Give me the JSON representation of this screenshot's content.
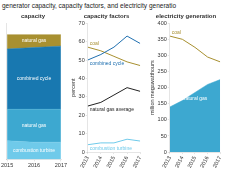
{
  "title": "generator capacity, capacity factors, and electricity generatio",
  "chart_data": [
    {
      "type": "area",
      "title": "capacity",
      "stacked": true,
      "grid": false,
      "tick_labels": "x",
      "x": [
        2015,
        2016,
        2017
      ],
      "xlim": [
        2014.99,
        2017.01
      ],
      "xticks": [
        2015,
        2016,
        2017
      ],
      "ylim": [
        0,
        95
      ],
      "series": [
        {
          "name": "combustion turbine",
          "color": "#6fcaea",
          "values": [
            13,
            12,
            12
          ]
        },
        {
          "name": "natural gas",
          "color": "#3da8d0",
          "values": [
            22,
            23,
            23
          ]
        },
        {
          "name": "combined cycle",
          "color": "#1878b0",
          "values": [
            42,
            43,
            44
          ]
        },
        {
          "name": "natural gas",
          "color": "#a89030",
          "values": [
            10,
            9,
            8
          ]
        }
      ]
    },
    {
      "type": "line",
      "title": "capacity factors",
      "ylabel": "percent",
      "grid": false,
      "x": [
        2013,
        2014,
        2015,
        2016,
        2017
      ],
      "xlim": [
        2013,
        2017
      ],
      "xticks": [
        2013,
        2014,
        2015,
        2016,
        2017
      ],
      "ylim": [
        0,
        70
      ],
      "yticks": [
        0,
        10,
        20,
        30,
        40,
        50,
        60,
        70
      ],
      "series": [
        {
          "name": "combined cycle",
          "color": "#2070b0",
          "values": [
            50,
            53,
            57,
            63,
            59
          ]
        },
        {
          "name": "coal",
          "color": "#a89030",
          "values": [
            57,
            55,
            52,
            49,
            47
          ]
        },
        {
          "name": "natural gas average",
          "color": "#222222",
          "values": [
            25,
            27,
            31,
            35,
            33
          ]
        },
        {
          "name": "combustion turbine",
          "color": "#6fcaea",
          "values": [
            4,
            5,
            5,
            7,
            6
          ]
        }
      ]
    },
    {
      "type": "line",
      "title": "electricity generation",
      "ylabel": "million megawatthours",
      "grid": false,
      "x": [
        2013,
        2014,
        2015,
        2016,
        2017
      ],
      "xlim": [
        2013,
        2017
      ],
      "xticks": [
        2013,
        2014,
        2015,
        2016,
        2017
      ],
      "ylim": [
        0,
        400
      ],
      "yticks": [
        0,
        50,
        100,
        150,
        200,
        250,
        300,
        350,
        400
      ],
      "series": [
        {
          "name": "natural gas",
          "type": "area",
          "color": "#3da8d0",
          "values": [
            140,
            160,
            185,
            210,
            225
          ]
        },
        {
          "name": "coal",
          "type": "line",
          "color": "#a89030",
          "values": [
            360,
            350,
            325,
            295,
            280
          ]
        }
      ]
    }
  ]
}
